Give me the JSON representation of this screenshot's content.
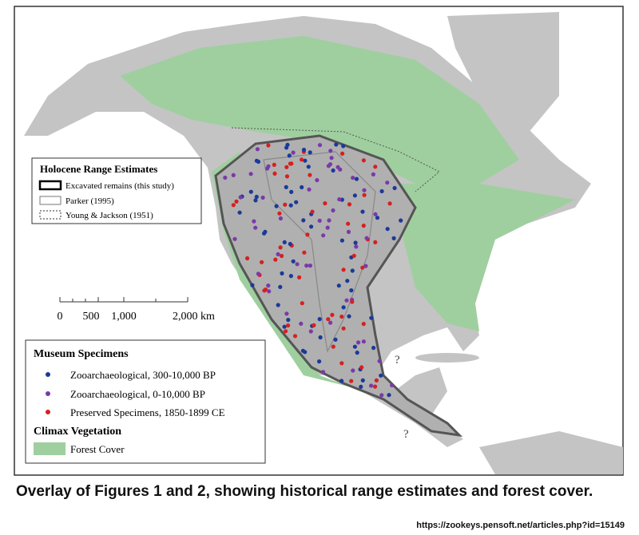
{
  "map": {
    "range_legend": {
      "title": "Holocene Range Estimates",
      "items": [
        "Excavated remains (this study)",
        "Parker (1995)",
        "Young & Jackson (1951)"
      ]
    },
    "scale": {
      "labels": [
        "0",
        "500",
        "1,000",
        "2,000 km"
      ]
    },
    "specimen_legend": {
      "title": "Museum Specimens",
      "items": [
        "Zooarchaeological, 300-10,000 BP",
        "Zooarchaeological, 0-10,000 BP",
        "Preserved Specimens, 1850-1899 CE"
      ],
      "vegetation_title": "Climax Vegetation",
      "vegetation_item": "Forest Cover"
    },
    "annotations": [
      "?",
      "?"
    ]
  },
  "caption": "Overlay of Figures 1 and 2, showing historical range estimates and forest cover.",
  "source": "https://zookeys.pensoft.net/articles.php?id=15149"
}
